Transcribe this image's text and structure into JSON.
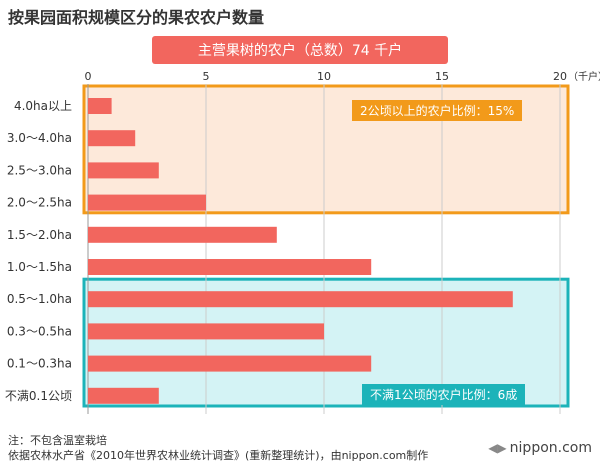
{
  "title": "按果园面积规模区分的果农农户数量",
  "banner": "主营果树的农户（总数）74 千户",
  "chart_data": {
    "type": "bar",
    "orientation": "horizontal",
    "categories": [
      "4.0ha以上",
      "3.0～4.0ha",
      "2.5～3.0ha",
      "2.0～2.5ha",
      "1.5～2.0ha",
      "1.0～1.5ha",
      "0.5～1.0ha",
      "0.3～0.5ha",
      "0.1～0.3ha",
      "不满0.1公顷"
    ],
    "values": [
      1,
      2,
      3,
      5,
      8,
      12,
      18,
      10,
      12,
      3
    ],
    "xlim": [
      0,
      20
    ],
    "xticks": [
      "0",
      "5",
      "10",
      "15",
      "20"
    ],
    "xunit": "（千户）",
    "grid": true,
    "bar_color": "#f2665e",
    "annotations": [
      {
        "text": "2公顷以上的农户比例：15%",
        "color": "#f29a1a",
        "from": 0,
        "to": 3
      },
      {
        "text": "不满1公顷的农户比例：6成",
        "color": "#1cb3b9",
        "from": 6,
        "to": 9
      }
    ]
  },
  "footnotes": [
    "注：不包含温室栽培",
    "依据农林水产省《2010年世界农林业统计调查》(重新整理统计)，由nippon.com制作"
  ],
  "logo": "nippon.com"
}
